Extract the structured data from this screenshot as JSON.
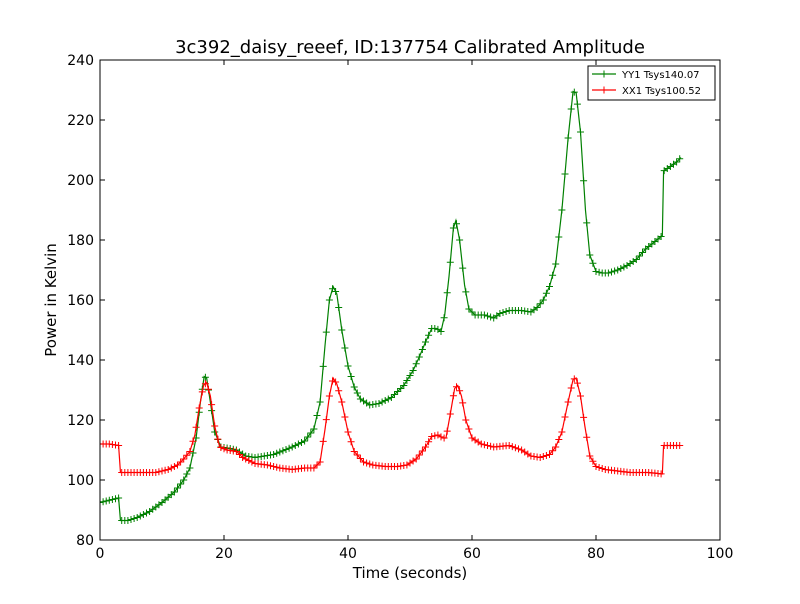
{
  "chart_data": {
    "type": "line",
    "title": "3c392_daisy_reeef, ID:137754 Calibrated Amplitude",
    "xlabel": "Time (seconds)",
    "ylabel": "Power in Kelvin",
    "xlim": [
      0,
      100
    ],
    "ylim": [
      80,
      240
    ],
    "x_ticks": [
      0,
      20,
      40,
      60,
      80,
      100
    ],
    "y_ticks": [
      80,
      100,
      120,
      140,
      160,
      180,
      200,
      220,
      240
    ],
    "grid": false,
    "legend_position": "top-right",
    "marker": "+",
    "series": [
      {
        "name": "YY1 Tsys140.07",
        "color": "#008000",
        "points": [
          [
            0.0,
            92.5
          ],
          [
            1.0,
            93.0
          ],
          [
            2.0,
            93.5
          ],
          [
            3.0,
            94.0
          ],
          [
            3.3,
            86.5
          ],
          [
            4.5,
            86.5
          ],
          [
            6.0,
            87.5
          ],
          [
            8.0,
            89.5
          ],
          [
            10.0,
            92.5
          ],
          [
            12.0,
            96.0
          ],
          [
            13.5,
            100.0
          ],
          [
            14.5,
            104.0
          ],
          [
            15.5,
            114.0
          ],
          [
            16.2,
            126.0
          ],
          [
            16.8,
            134.5
          ],
          [
            17.2,
            134.0
          ],
          [
            17.8,
            126.0
          ],
          [
            18.5,
            116.0
          ],
          [
            19.5,
            111.0
          ],
          [
            21.0,
            110.5
          ],
          [
            22.0,
            110.0
          ],
          [
            23.5,
            108.0
          ],
          [
            25.0,
            107.5
          ],
          [
            28.0,
            108.5
          ],
          [
            31.0,
            111.0
          ],
          [
            33.0,
            113.0
          ],
          [
            34.5,
            117.0
          ],
          [
            35.5,
            126.0
          ],
          [
            36.3,
            145.0
          ],
          [
            37.0,
            160.0
          ],
          [
            37.6,
            164.5
          ],
          [
            38.2,
            162.0
          ],
          [
            39.0,
            150.0
          ],
          [
            40.0,
            138.0
          ],
          [
            41.0,
            131.0
          ],
          [
            42.0,
            127.0
          ],
          [
            43.5,
            125.0
          ],
          [
            45.0,
            125.5
          ],
          [
            47.0,
            127.5
          ],
          [
            49.0,
            131.5
          ],
          [
            50.5,
            136.5
          ],
          [
            51.5,
            141.0
          ],
          [
            52.5,
            146.0
          ],
          [
            53.5,
            150.5
          ],
          [
            54.3,
            150.5
          ],
          [
            55.0,
            149.5
          ],
          [
            55.6,
            155.0
          ],
          [
            56.3,
            168.0
          ],
          [
            57.0,
            184.0
          ],
          [
            57.4,
            186.5
          ],
          [
            58.0,
            180.0
          ],
          [
            58.8,
            165.0
          ],
          [
            59.5,
            157.0
          ],
          [
            60.5,
            155.0
          ],
          [
            62.0,
            155.0
          ],
          [
            63.5,
            154.0
          ],
          [
            64.5,
            155.5
          ],
          [
            66.0,
            156.5
          ],
          [
            68.0,
            156.5
          ],
          [
            69.5,
            156.0
          ],
          [
            70.5,
            157.5
          ],
          [
            71.5,
            160.0
          ],
          [
            72.5,
            164.5
          ],
          [
            73.5,
            172.0
          ],
          [
            74.5,
            190.0
          ],
          [
            75.5,
            214.0
          ],
          [
            76.3,
            229.5
          ],
          [
            76.8,
            229.0
          ],
          [
            77.5,
            216.0
          ],
          [
            78.3,
            190.0
          ],
          [
            79.0,
            175.0
          ],
          [
            80.0,
            169.5
          ],
          [
            81.0,
            169.0
          ],
          [
            82.0,
            169.0
          ],
          [
            83.5,
            170.0
          ],
          [
            85.0,
            171.5
          ],
          [
            86.5,
            173.5
          ],
          [
            88.0,
            177.0
          ],
          [
            89.5,
            179.5
          ],
          [
            90.7,
            181.5
          ],
          [
            90.9,
            203.0
          ],
          [
            92.0,
            204.5
          ],
          [
            93.0,
            206.0
          ],
          [
            93.7,
            207.5
          ]
        ]
      },
      {
        "name": "XX1 Tsys100.52",
        "color": "#ff0000",
        "points": [
          [
            0.0,
            112.0
          ],
          [
            1.5,
            112.0
          ],
          [
            3.0,
            111.5
          ],
          [
            3.3,
            102.5
          ],
          [
            5.0,
            102.5
          ],
          [
            7.0,
            102.5
          ],
          [
            9.0,
            102.5
          ],
          [
            11.0,
            103.5
          ],
          [
            12.5,
            105.0
          ],
          [
            13.5,
            107.0
          ],
          [
            14.5,
            109.5
          ],
          [
            15.3,
            115.0
          ],
          [
            16.0,
            124.0
          ],
          [
            16.7,
            131.5
          ],
          [
            17.2,
            132.5
          ],
          [
            17.8,
            128.0
          ],
          [
            18.5,
            118.0
          ],
          [
            19.3,
            111.0
          ],
          [
            20.5,
            110.0
          ],
          [
            22.0,
            109.5
          ],
          [
            23.0,
            107.5
          ],
          [
            25.0,
            105.5
          ],
          [
            27.0,
            105.0
          ],
          [
            29.0,
            104.0
          ],
          [
            31.0,
            103.5
          ],
          [
            33.0,
            104.0
          ],
          [
            34.5,
            104.0
          ],
          [
            35.5,
            106.0
          ],
          [
            36.3,
            117.0
          ],
          [
            37.0,
            128.0
          ],
          [
            37.6,
            134.0
          ],
          [
            38.2,
            132.0
          ],
          [
            39.0,
            126.0
          ],
          [
            40.0,
            116.0
          ],
          [
            41.0,
            109.5
          ],
          [
            42.5,
            106.0
          ],
          [
            44.0,
            105.0
          ],
          [
            46.0,
            104.5
          ],
          [
            48.0,
            104.5
          ],
          [
            49.5,
            105.0
          ],
          [
            51.0,
            107.0
          ],
          [
            52.5,
            111.0
          ],
          [
            53.5,
            114.5
          ],
          [
            54.5,
            115.0
          ],
          [
            55.3,
            114.0
          ],
          [
            55.8,
            114.0
          ],
          [
            56.5,
            122.0
          ],
          [
            57.2,
            130.5
          ],
          [
            57.7,
            131.5
          ],
          [
            58.3,
            128.0
          ],
          [
            59.0,
            120.0
          ],
          [
            60.0,
            114.0
          ],
          [
            61.5,
            112.0
          ],
          [
            63.5,
            111.0
          ],
          [
            66.0,
            111.5
          ],
          [
            68.0,
            110.0
          ],
          [
            69.5,
            108.0
          ],
          [
            71.0,
            107.5
          ],
          [
            72.5,
            108.5
          ],
          [
            73.5,
            111.0
          ],
          [
            74.5,
            116.0
          ],
          [
            75.5,
            126.0
          ],
          [
            76.3,
            133.5
          ],
          [
            76.8,
            134.0
          ],
          [
            77.5,
            128.0
          ],
          [
            78.2,
            118.0
          ],
          [
            79.0,
            108.0
          ],
          [
            80.0,
            104.5
          ],
          [
            81.5,
            103.5
          ],
          [
            83.5,
            103.0
          ],
          [
            85.5,
            102.5
          ],
          [
            87.0,
            102.5
          ],
          [
            88.5,
            102.5
          ],
          [
            90.7,
            102.0
          ],
          [
            90.9,
            111.5
          ],
          [
            92.0,
            111.5
          ],
          [
            93.5,
            111.5
          ]
        ]
      }
    ]
  }
}
